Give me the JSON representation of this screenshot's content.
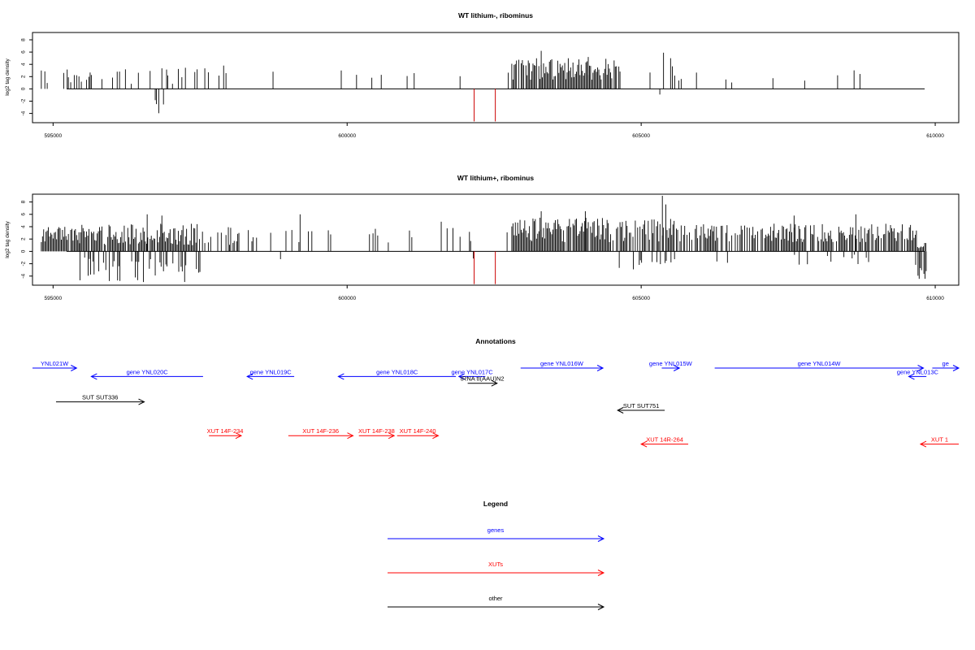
{
  "colors": {
    "genes": "#0000ff",
    "xuts": "#ff0000",
    "other": "#000000",
    "trna_bar": "#cc0000"
  },
  "chart_data": [
    {
      "type": "bar",
      "title": "WT lithium-, ribominus",
      "ylabel": "log2 tag density",
      "xlim": [
        594650,
        610400
      ],
      "ylim": [
        -5.5,
        9.5
      ],
      "yticks": [
        -4,
        -2,
        0,
        2,
        4,
        6,
        8
      ],
      "xticks": [
        595000,
        600000,
        605000,
        610000
      ],
      "xtick_labels": [
        "595000",
        "600000",
        "605000",
        "610000"
      ],
      "grid": false,
      "seed": 7,
      "highlight_bars": [
        {
          "x": 602160,
          "y": -5.3
        },
        {
          "x": 602520,
          "y": -5.3
        }
      ],
      "segments": [
        {
          "start": 594800,
          "end": 595550,
          "density": 0.35,
          "pos": [
            0.8,
            3.2
          ],
          "neg": [
            0,
            0
          ],
          "pneg": 0
        },
        {
          "start": 595550,
          "end": 597500,
          "density": 0.18,
          "pos": [
            0.8,
            3.5
          ],
          "neg": [
            0.8,
            4.0
          ],
          "pneg": 0.45
        },
        {
          "start": 597500,
          "end": 598200,
          "density": 0.1,
          "pos": [
            1.0,
            3.8
          ],
          "neg": [
            0,
            0
          ],
          "pneg": 0
        },
        {
          "start": 598200,
          "end": 602800,
          "density": 0.03,
          "pos": [
            1.5,
            3.0
          ],
          "neg": [
            0.8,
            2.5
          ],
          "pneg": 0.1
        },
        {
          "start": 602800,
          "end": 604650,
          "density": 0.9,
          "pos": [
            1.5,
            5.0
          ],
          "neg": [
            0,
            0
          ],
          "pneg": 0
        },
        {
          "start": 604650,
          "end": 605600,
          "density": 0.06,
          "pos": [
            1.5,
            5.5
          ],
          "neg": [
            0.8,
            1.5
          ],
          "pneg": 0.2
        },
        {
          "start": 605600,
          "end": 609800,
          "density": 0.04,
          "pos": [
            1.0,
            3.2
          ],
          "neg": [
            1.0,
            2.0
          ],
          "pneg": 0.05
        }
      ]
    },
    {
      "type": "bar",
      "title": "WT lithium+, ribominus",
      "ylabel": "log2 tag density",
      "xlim": [
        594650,
        610400
      ],
      "ylim": [
        -5.5,
        9.5
      ],
      "yticks": [
        -4,
        -2,
        0,
        2,
        4,
        6,
        8
      ],
      "xticks": [
        595000,
        600000,
        605000,
        610000
      ],
      "xtick_labels": [
        "595000",
        "600000",
        "605000",
        "610000"
      ],
      "grid": false,
      "seed": 19,
      "highlight_bars": [
        {
          "x": 602160,
          "y": -5.3
        },
        {
          "x": 602520,
          "y": -5.3
        }
      ],
      "segments": [
        {
          "start": 594800,
          "end": 595450,
          "density": 0.9,
          "pos": [
            1.5,
            4.0
          ],
          "neg": [
            0,
            0
          ],
          "pneg": 0
        },
        {
          "start": 595450,
          "end": 597500,
          "density": 0.9,
          "pos": [
            1.0,
            4.5
          ],
          "neg": [
            1.0,
            5.0
          ],
          "pneg": 0.45
        },
        {
          "start": 597500,
          "end": 598500,
          "density": 0.25,
          "pos": [
            1.0,
            4.0
          ],
          "neg": [
            0,
            0
          ],
          "pneg": 0
        },
        {
          "start": 598500,
          "end": 602800,
          "density": 0.1,
          "pos": [
            1.0,
            4.0
          ],
          "neg": [
            0.5,
            1.5
          ],
          "pneg": 0.1
        },
        {
          "start": 602800,
          "end": 604500,
          "density": 0.95,
          "pos": [
            1.5,
            5.5
          ],
          "neg": [
            0,
            0
          ],
          "pneg": 0
        },
        {
          "start": 604500,
          "end": 605600,
          "density": 0.7,
          "pos": [
            1.5,
            5.5
          ],
          "neg": [
            0.8,
            3.0
          ],
          "pneg": 0.25
        },
        {
          "start": 605600,
          "end": 609700,
          "density": 0.75,
          "pos": [
            1.5,
            4.5
          ],
          "neg": [
            0.5,
            2.5
          ],
          "pneg": 0.08
        },
        {
          "start": 609700,
          "end": 609850,
          "density": 0.9,
          "pos": [
            0.5,
            1.5
          ],
          "neg": [
            2.5,
            4.5
          ],
          "pneg": 0.9
        }
      ]
    }
  ],
  "annotations": {
    "title": "Annotations",
    "features": [
      {
        "label": "YNL021W",
        "color": "blue",
        "dir": ">",
        "start": 594650,
        "end": 595400,
        "row": 0
      },
      {
        "label": "gene YNL020C",
        "color": "blue",
        "dir": "<",
        "start": 595650,
        "end": 597550,
        "row": 1
      },
      {
        "label": "gene YNL019C",
        "color": "blue",
        "dir": "<",
        "start": 598300,
        "end": 599100,
        "row": 1
      },
      {
        "label": "gene YNL018C",
        "color": "blue",
        "dir": "<",
        "start": 599850,
        "end": 601850,
        "row": 1
      },
      {
        "label": "gene YNL017C",
        "color": "blue",
        "dir": "<",
        "start": 601900,
        "end": 602350,
        "row": 1
      },
      {
        "label": "tRNA tI(AAU)N2",
        "color": "black",
        "dir": ">",
        "start": 602050,
        "end": 602550,
        "row": 1.8
      },
      {
        "label": "gene YNL016W",
        "color": "blue",
        "dir": ">",
        "start": 602950,
        "end": 604350,
        "row": 0
      },
      {
        "label": "gene YNL015W",
        "color": "blue",
        "dir": ">",
        "start": 605350,
        "end": 605650,
        "row": 0
      },
      {
        "label": "gene YNL014W",
        "color": "blue",
        "dir": ">",
        "start": 606250,
        "end": 609800,
        "row": 0
      },
      {
        "label": "gene YNL013C",
        "color": "blue",
        "dir": "<",
        "start": 609550,
        "end": 609850,
        "row": 1
      },
      {
        "label": "ge",
        "color": "blue",
        "dir": ">",
        "start": 609950,
        "end": 610400,
        "row": 0
      },
      {
        "label": "SUT SUT336",
        "color": "black",
        "dir": ">",
        "start": 595050,
        "end": 596550,
        "row": 4
      },
      {
        "label": "SUT SUT751",
        "color": "black",
        "dir": "<",
        "start": 604600,
        "end": 605400,
        "row": 5
      },
      {
        "label": "XUT 14F-234",
        "color": "red",
        "dir": ">",
        "start": 597650,
        "end": 598200,
        "row": 8
      },
      {
        "label": "XUT 14F-236",
        "color": "red",
        "dir": ">",
        "start": 599000,
        "end": 600100,
        "row": 8
      },
      {
        "label": "XUT 14F-238",
        "color": "red",
        "dir": ">",
        "start": 600200,
        "end": 600800,
        "row": 8
      },
      {
        "label": "XUT 14F-240",
        "color": "red",
        "dir": ">",
        "start": 600850,
        "end": 601550,
        "row": 8
      },
      {
        "label": "XUT 14R-264",
        "color": "red",
        "dir": "<",
        "start": 605000,
        "end": 605800,
        "row": 9
      },
      {
        "label": "XUT 1",
        "color": "red",
        "dir": "<",
        "start": 609750,
        "end": 610400,
        "row": 9
      }
    ]
  },
  "legend": {
    "title": "Legend",
    "items": [
      {
        "label": "genes",
        "color": "blue"
      },
      {
        "label": "XUTs",
        "color": "red"
      },
      {
        "label": "other",
        "color": "black"
      }
    ]
  }
}
